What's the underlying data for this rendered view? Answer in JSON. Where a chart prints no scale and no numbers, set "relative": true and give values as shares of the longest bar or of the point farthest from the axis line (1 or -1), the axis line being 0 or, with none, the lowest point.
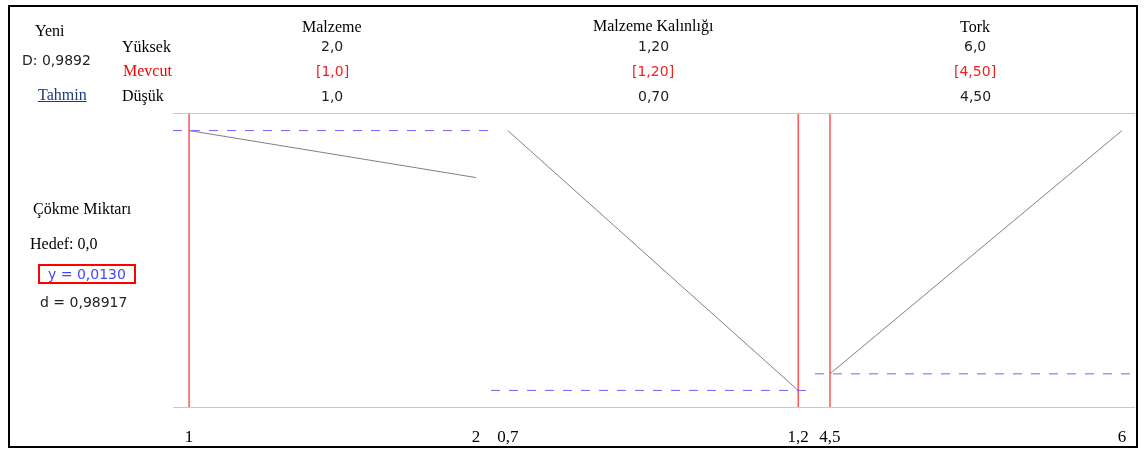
{
  "chart_data": [
    {
      "type": "other",
      "annotations": [
        "Yeni",
        "D: 0,9892",
        "Tahmin",
        "Yüksek",
        "Mevcut",
        "Düşük",
        "Çökme Miktarı",
        "Hedef:  0,0",
        "y = 0,0130",
        "d = 0,98917"
      ]
    },
    {
      "type": "line",
      "title": "Malzeme",
      "annotations": [
        "2,0",
        "[1,0]",
        "1,0"
      ],
      "relative": true,
      "x": [
        1,
        2
      ],
      "series": [
        {
          "color": "#808080",
          "values": [
            1,
            0.83
          ]
        }
      ],
      "xlim": [
        0.944,
        2.052
      ],
      "xticks": [
        1,
        2
      ],
      "ref_lines": [
        {
          "axis": "x",
          "value": 1,
          "color": "#ff0000"
        },
        {
          "axis": "y",
          "value": 1,
          "color": "#6666ff",
          "line_style": "dashed"
        }
      ],
      "grid": false,
      "marker": "none",
      "line_style": "solid",
      "tick_labels": "x"
    },
    {
      "type": "line",
      "title": "Malzeme Kalınlığı",
      "annotations": [
        "1,20",
        "[1,20]",
        "0,70"
      ],
      "relative": true,
      "x": [
        0.7,
        1.2
      ],
      "series": [
        {
          "color": "#808080",
          "values": [
            1,
            0.06
          ]
        }
      ],
      "xlim": [
        0.671,
        1.229
      ],
      "xticks": [
        {
          "value": 0.7,
          "label": "0,7"
        },
        {
          "value": 1.2,
          "label": "1,2"
        }
      ],
      "ref_lines": [
        {
          "axis": "x",
          "value": 1.2,
          "color": "#ff0000"
        },
        {
          "axis": "y",
          "value": 0.06,
          "color": "#6666ff",
          "line_style": "dashed"
        }
      ],
      "grid": false,
      "marker": "none",
      "line_style": "solid",
      "tick_labels": "x"
    },
    {
      "type": "line",
      "title": "Tork",
      "annotations": [
        "6,0",
        "[4,50]",
        "4,50"
      ],
      "relative": true,
      "x": [
        4.5,
        6
      ],
      "series": [
        {
          "color": "#808080",
          "values": [
            0.12,
            1
          ]
        }
      ],
      "xlim": [
        4.423,
        6.067
      ],
      "xticks": [
        {
          "value": 4.5,
          "label": "4,5"
        },
        6
      ],
      "ref_lines": [
        {
          "axis": "x",
          "value": 4.5,
          "color": "#ff0000"
        },
        {
          "axis": "y",
          "value": 0.12,
          "color": "#6666ff",
          "line_style": "dashed"
        }
      ],
      "grid": false,
      "marker": "none",
      "line_style": "solid",
      "tick_labels": "x"
    }
  ]
}
